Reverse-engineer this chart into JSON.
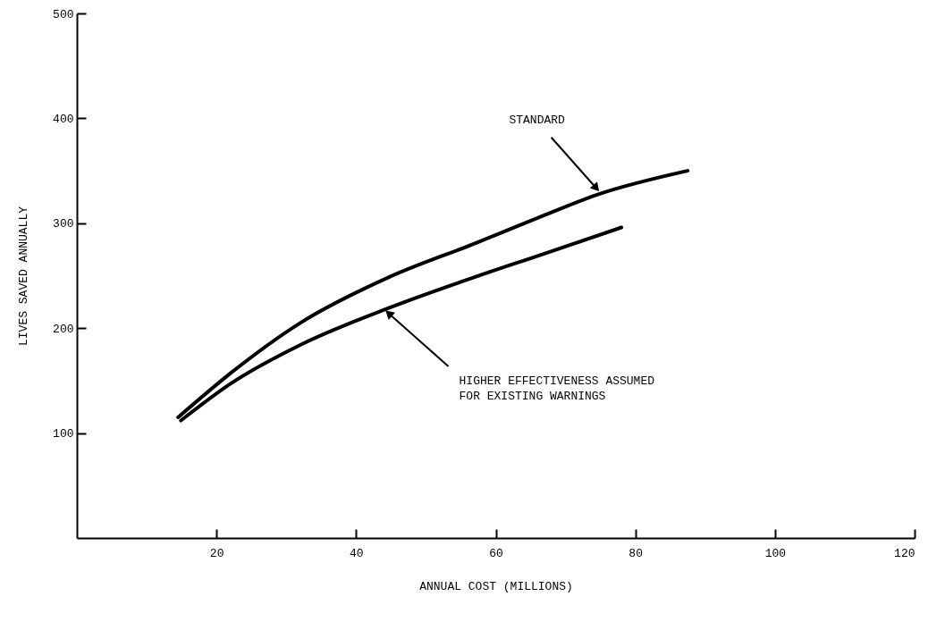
{
  "chart_data": {
    "type": "line",
    "xlabel": "ANNUAL COST (MILLIONS)",
    "ylabel": "LIVES SAVED ANNUALLY",
    "xlim": [
      0,
      120
    ],
    "xticks": [
      20,
      40,
      60,
      80,
      100,
      120
    ],
    "ylim": [
      0,
      500
    ],
    "yticks": [
      100,
      200,
      300,
      400,
      500
    ],
    "grid": false,
    "series": [
      {
        "color": "#000000",
        "x": [
          14.5,
          22,
          32,
          44.5,
          56.7,
          66,
          74.9,
          87.5
        ],
        "values": [
          115,
          157,
          205,
          248,
          280,
          305,
          328,
          350
        ]
      },
      {
        "color": "#000000",
        "x": [
          14.9,
          22,
          32,
          45,
          56.7,
          66.5,
          78
        ],
        "values": [
          112,
          147,
          184,
          220,
          248,
          270,
          296
        ]
      }
    ],
    "annotations": [
      {
        "text": "STANDARD",
        "x": 75,
        "y": 329
      },
      {
        "text": "HIGHER EFFECTIVENESS ASSUMED\nFOR EXISTING WARNINGS",
        "x": 44,
        "y": 218
      }
    ]
  }
}
